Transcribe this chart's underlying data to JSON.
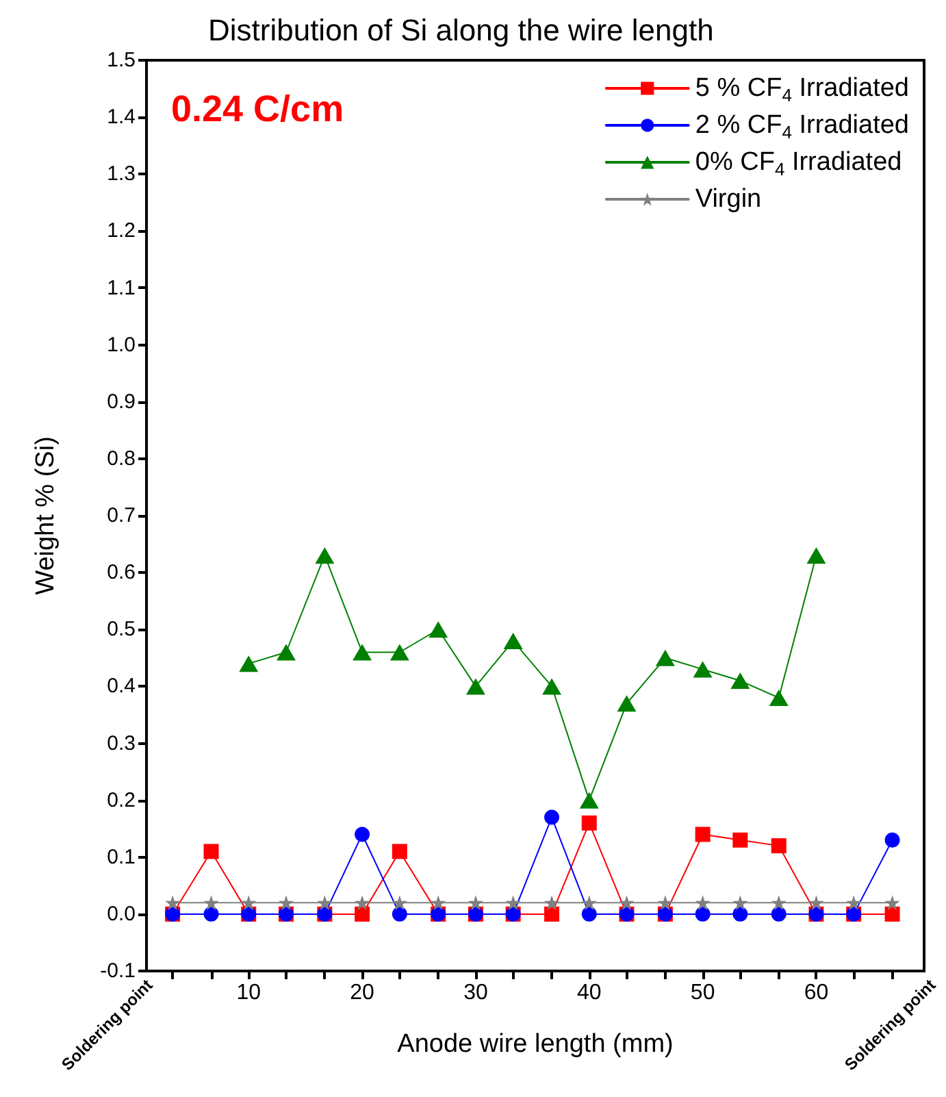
{
  "chart_data": {
    "type": "line",
    "title": "Distribution of Si along the wire length",
    "xlabel": "Anode wire length (mm)",
    "ylabel": "Weight % (Si)",
    "annotations": [
      "0.24 C/cm",
      "Soldering point",
      "Soldering point"
    ],
    "x": [
      3.3,
      6.7,
      10,
      13.3,
      16.7,
      20,
      23.3,
      26.7,
      30,
      33.3,
      36.7,
      40,
      43.3,
      46.7,
      50,
      53.3,
      56.7,
      60,
      63.3,
      66.7
    ],
    "series": [
      {
        "name": "5 % CF$_{4}$ Irradiated",
        "color": "#ff0000",
        "marker": "square",
        "values": [
          0,
          0.11,
          0,
          0,
          0,
          0,
          0.11,
          0,
          0,
          0,
          0,
          0.16,
          0,
          0,
          0.14,
          0.13,
          0.12,
          0,
          0,
          0
        ]
      },
      {
        "name": "2 % CF$_{4}$ Irradiated",
        "color": "#0000ff",
        "marker": "circle",
        "values": [
          0,
          0,
          0,
          0,
          0,
          0.14,
          0,
          0,
          0,
          0,
          0.17,
          0,
          0,
          0,
          0,
          0,
          0,
          0,
          0,
          0.13
        ]
      },
      {
        "name": "0% CF$_{4}$ Irradiated",
        "color": "#008000",
        "marker": "triangle",
        "x": [
          10,
          13.3,
          16.7,
          20,
          23.3,
          26.7,
          30,
          33.3,
          36.7,
          40,
          43.3,
          46.7,
          50,
          53.3,
          56.7,
          60
        ],
        "values": [
          0.44,
          0.46,
          0.63,
          0.46,
          0.46,
          0.5,
          0.4,
          0.48,
          0.4,
          0.2,
          0.37,
          0.45,
          0.43,
          0.41,
          0.38,
          0.63
        ]
      },
      {
        "name": "Virgin",
        "color": "#808080",
        "marker": "star",
        "values": [
          0.02,
          0.02,
          0.02,
          0.02,
          0.02,
          0.02,
          0.02,
          0.02,
          0.02,
          0.02,
          0.02,
          0.02,
          0.02,
          0.02,
          0.02,
          0.02,
          0.02,
          0.02,
          0.02,
          0.02
        ]
      }
    ],
    "xlim": [
      1,
      69.5
    ],
    "xticks": [
      {
        "value": 3.3,
        "label": null
      },
      {
        "value": 6.7,
        "label": null
      },
      10,
      {
        "value": 13.3,
        "label": null
      },
      {
        "value": 16.7,
        "label": null
      },
      20,
      {
        "value": 23.3,
        "label": null
      },
      {
        "value": 26.7,
        "label": null
      },
      30,
      {
        "value": 33.3,
        "label": null
      },
      {
        "value": 36.7,
        "label": null
      },
      40,
      {
        "value": 43.3,
        "label": null
      },
      {
        "value": 46.7,
        "label": null
      },
      50,
      {
        "value": 53.3,
        "label": null
      },
      {
        "value": 56.7,
        "label": null
      },
      60,
      {
        "value": 63.3,
        "label": null
      },
      {
        "value": 66.7,
        "label": null
      }
    ],
    "ylim": [
      -0.1,
      1.5
    ],
    "yticks": [
      -0.1,
      {
        "value": 0,
        "label": "0.0"
      },
      0.1,
      0.2,
      0.3,
      0.4,
      0.5,
      0.6,
      0.7,
      0.8,
      0.9,
      {
        "value": 1,
        "label": "1.0"
      },
      1.1,
      1.2,
      1.3,
      1.4,
      1.5
    ],
    "grid": false,
    "legend": "top right",
    "line_style": "solid"
  }
}
